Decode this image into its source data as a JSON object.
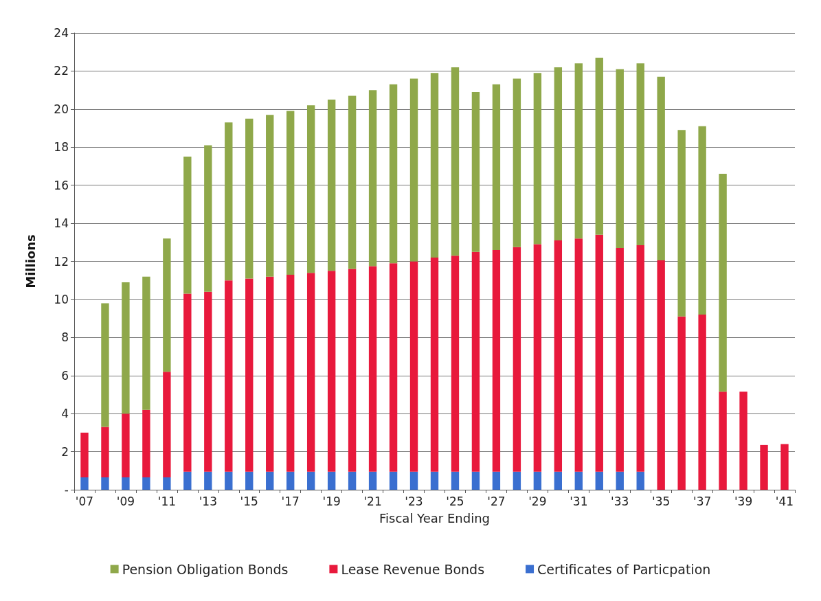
{
  "chart_data": {
    "type": "bar",
    "stacked": true,
    "xlabel": "Fiscal Year Ending",
    "ylabel": "Millions",
    "categories": [
      "'07",
      null,
      "'09",
      null,
      "'11",
      null,
      "'13",
      null,
      "'15",
      null,
      "'17",
      null,
      "'19",
      null,
      "'21",
      null,
      "'23",
      null,
      "'25",
      null,
      "'27",
      null,
      "'29",
      null,
      "'31",
      null,
      "'33",
      null,
      "'35",
      null,
      "'37",
      null,
      "'39",
      null,
      "'41"
    ],
    "series": [
      {
        "name": "Certificates of Particpation",
        "color": "#3a6fd0",
        "values": [
          0.65,
          0.65,
          0.65,
          0.65,
          0.65,
          0.95,
          0.95,
          0.95,
          0.95,
          0.95,
          0.95,
          0.95,
          0.95,
          0.95,
          0.95,
          0.95,
          0.95,
          0.95,
          0.95,
          0.95,
          0.95,
          0.95,
          0.95,
          0.95,
          0.95,
          0.95,
          0.95,
          0.95,
          null,
          null,
          null,
          null,
          null,
          null,
          null
        ]
      },
      {
        "name": "Lease Revenue Bonds",
        "color": "#e8193c",
        "values": [
          2.35,
          2.65,
          3.35,
          3.55,
          5.55,
          9.35,
          9.45,
          10.05,
          10.15,
          10.25,
          10.35,
          10.45,
          10.55,
          10.65,
          10.8,
          10.95,
          11.05,
          11.25,
          11.35,
          11.55,
          11.65,
          11.8,
          11.95,
          12.15,
          12.25,
          12.45,
          11.75,
          11.9,
          12.05,
          9.1,
          9.2,
          5.15,
          5.15,
          2.35,
          2.4
        ]
      },
      {
        "name": "Pension Obligation Bonds",
        "color": "#8fa84a",
        "values": [
          null,
          6.5,
          6.9,
          7.0,
          7.0,
          7.2,
          7.7,
          8.3,
          8.4,
          8.5,
          8.6,
          8.8,
          9.0,
          9.1,
          9.25,
          9.4,
          9.6,
          9.7,
          9.9,
          8.4,
          8.7,
          8.85,
          9.0,
          9.1,
          9.2,
          9.3,
          9.4,
          9.55,
          9.65,
          9.8,
          9.9,
          11.45,
          null,
          null,
          null
        ]
      }
    ],
    "ylim": [
      0,
      24
    ],
    "yticks": [
      {
        "value": 0,
        "label": "-"
      },
      2,
      4,
      6,
      8,
      10,
      12,
      14,
      16,
      18,
      20,
      22,
      24
    ],
    "grid": "y",
    "legend": "bottom"
  }
}
